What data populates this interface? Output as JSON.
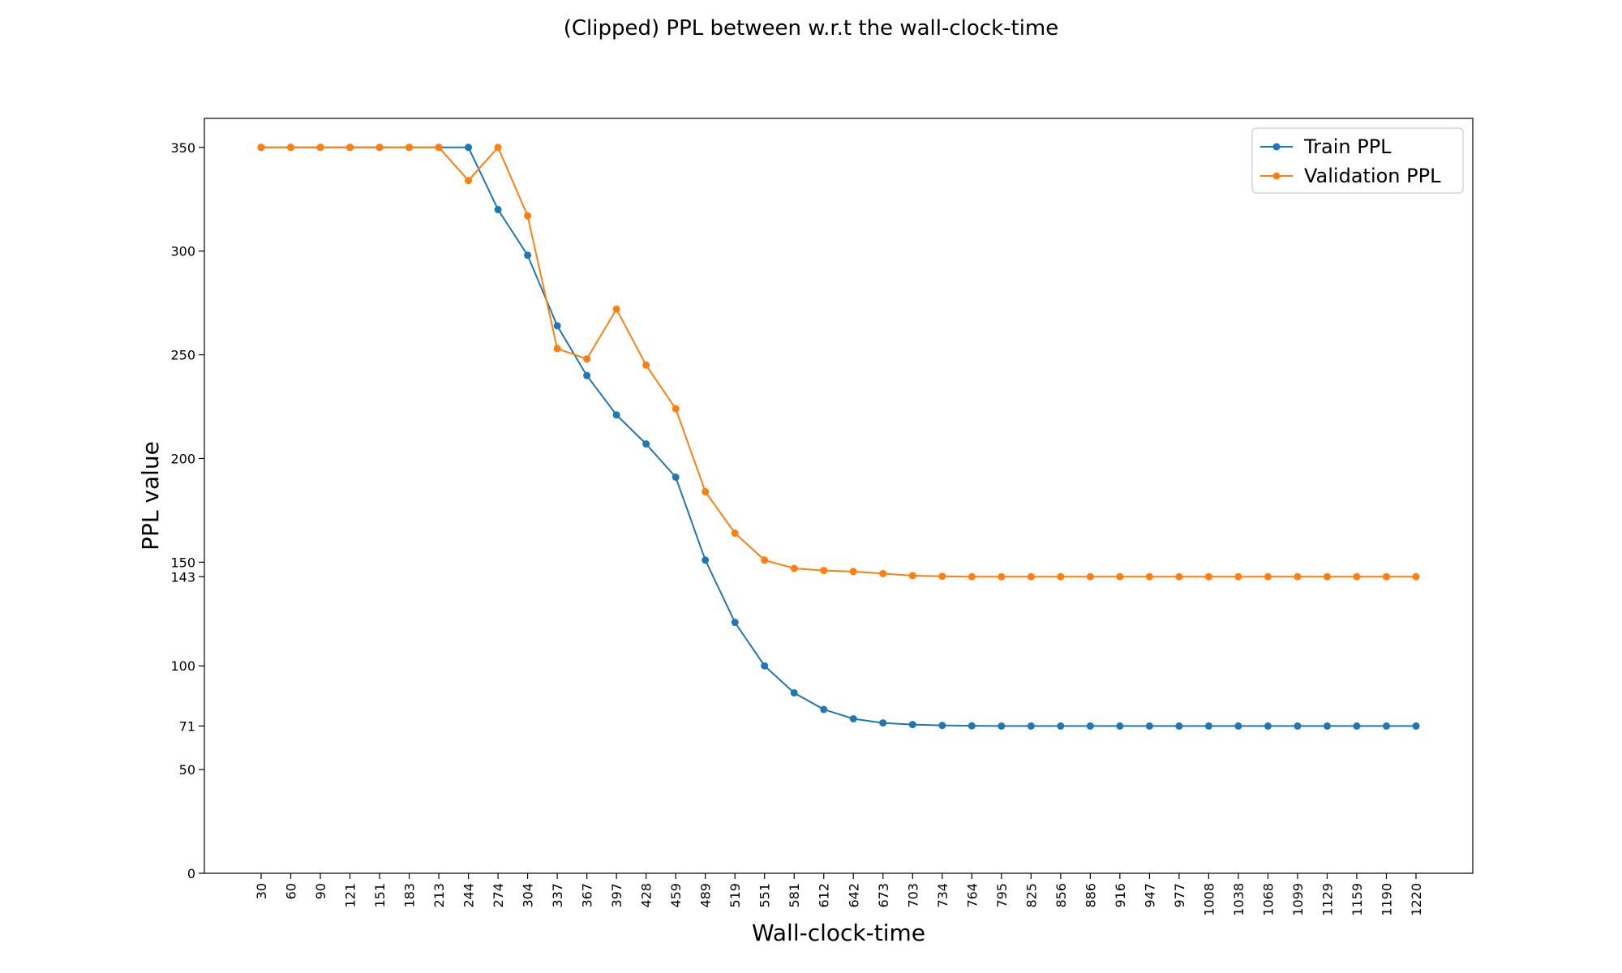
{
  "chart_data": {
    "type": "line",
    "title": "(Clipped) PPL between w.r.t the wall-clock-time",
    "xlabel": "Wall-clock-time",
    "ylabel": "PPL value",
    "x": [
      30,
      60,
      90,
      121,
      151,
      183,
      213,
      244,
      274,
      304,
      337,
      367,
      397,
      428,
      459,
      489,
      519,
      551,
      581,
      612,
      642,
      673,
      703,
      734,
      764,
      795,
      825,
      856,
      886,
      916,
      947,
      977,
      1008,
      1038,
      1068,
      1099,
      1129,
      1159,
      1190,
      1220
    ],
    "y_ticks": [
      0,
      50,
      71,
      100,
      143,
      150,
      200,
      250,
      300,
      350
    ],
    "ylim": [
      0,
      364
    ],
    "grid": false,
    "legend_position": "top-right",
    "colors": {
      "Train PPL": "#1f77b4",
      "Validation PPL": "#ff7f0e"
    },
    "series": [
      {
        "name": "Train PPL",
        "values": [
          350,
          350,
          350,
          350,
          350,
          350,
          350,
          350,
          320,
          298,
          264,
          240,
          221,
          207,
          191,
          151,
          121,
          100,
          87,
          79,
          74.5,
          72.5,
          71.7,
          71.3,
          71.1,
          71,
          71,
          71,
          71,
          71,
          71,
          71,
          71,
          71,
          71,
          71,
          71,
          71,
          71,
          71
        ]
      },
      {
        "name": "Validation PPL",
        "values": [
          350,
          350,
          350,
          350,
          350,
          350,
          350,
          334,
          350,
          317,
          253,
          248,
          272,
          245,
          224,
          184,
          164,
          151,
          147,
          146,
          145.5,
          144.5,
          143.5,
          143.2,
          143,
          143,
          143,
          143,
          143,
          143,
          143,
          143,
          143,
          143,
          143,
          143,
          143,
          143,
          143,
          143
        ]
      }
    ]
  }
}
